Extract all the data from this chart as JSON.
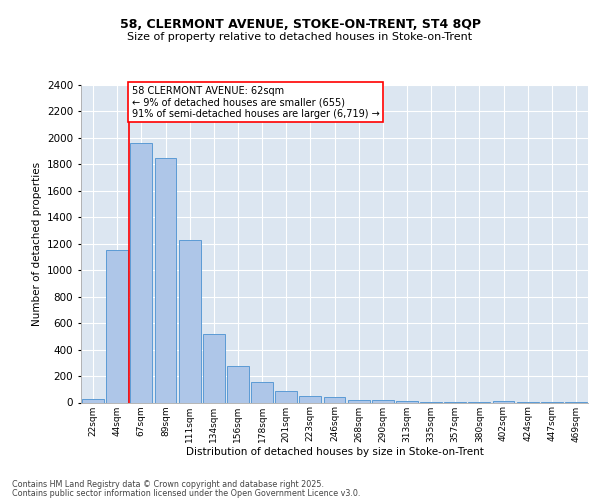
{
  "title1": "58, CLERMONT AVENUE, STOKE-ON-TRENT, ST4 8QP",
  "title2": "Size of property relative to detached houses in Stoke-on-Trent",
  "xlabel": "Distribution of detached houses by size in Stoke-on-Trent",
  "ylabel": "Number of detached properties",
  "categories": [
    "22sqm",
    "44sqm",
    "67sqm",
    "89sqm",
    "111sqm",
    "134sqm",
    "156sqm",
    "178sqm",
    "201sqm",
    "223sqm",
    "246sqm",
    "268sqm",
    "290sqm",
    "313sqm",
    "335sqm",
    "357sqm",
    "380sqm",
    "402sqm",
    "424sqm",
    "447sqm",
    "469sqm"
  ],
  "values": [
    28,
    1150,
    1960,
    1850,
    1230,
    515,
    275,
    155,
    90,
    48,
    40,
    20,
    18,
    8,
    2,
    2,
    2,
    10,
    1,
    1,
    1
  ],
  "bar_color": "#aec6e8",
  "bar_edge_color": "#5b9bd5",
  "background_color": "#dce6f1",
  "grid_color": "#ffffff",
  "vline_x": 1.5,
  "vline_color": "red",
  "annotation_text": "58 CLERMONT AVENUE: 62sqm\n← 9% of detached houses are smaller (655)\n91% of semi-detached houses are larger (6,719) →",
  "annotation_box_color": "white",
  "annotation_box_edgecolor": "red",
  "footer1": "Contains HM Land Registry data © Crown copyright and database right 2025.",
  "footer2": "Contains public sector information licensed under the Open Government Licence v3.0.",
  "ylim": [
    0,
    2400
  ],
  "yticks": [
    0,
    200,
    400,
    600,
    800,
    1000,
    1200,
    1400,
    1600,
    1800,
    2000,
    2200,
    2400
  ]
}
